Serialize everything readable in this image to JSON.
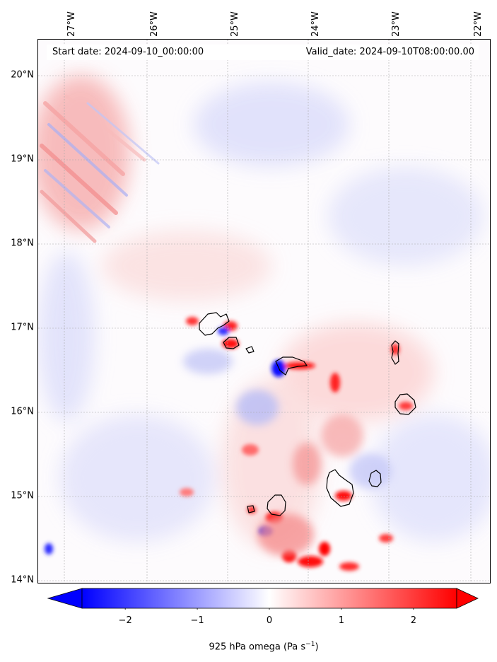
{
  "map": {
    "start_date": "Start date: 2024-09-10_00:00:00",
    "valid_date": "Valid_date: 2024-09-10T08:00:00.00",
    "lon_ticks": [
      "27°W",
      "26°W",
      "25°W",
      "24°W",
      "23°W",
      "22°W"
    ],
    "lat_ticks": [
      "20°N",
      "19°N",
      "18°N",
      "17°N",
      "16°N",
      "15°N",
      "14°N"
    ],
    "extent_lon": [
      -27.32,
      -21.74
    ],
    "extent_lat": [
      13.95,
      20.42
    ],
    "projection": "PlateCarree",
    "gridlines": true
  },
  "colorbar": {
    "label_main": "925 hPa omega (Pa s",
    "label_exp": "−1",
    "label_end": ")",
    "ticks": [
      "−2",
      "−1",
      "0",
      "1",
      "2"
    ],
    "range": [
      -2.6,
      2.6
    ],
    "extend": "both",
    "colormap": "bwr",
    "color_low": "#0000ff",
    "color_mid": "#ffffff",
    "color_high": "#ff0000"
  }
}
